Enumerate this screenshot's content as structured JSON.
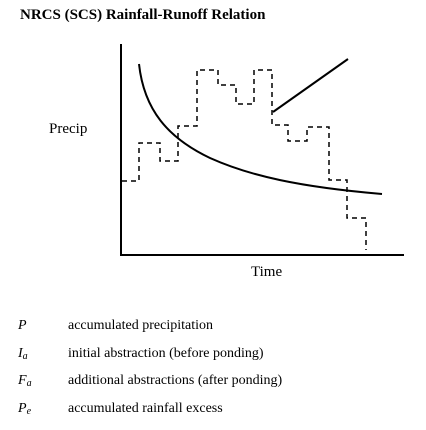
{
  "title": "NRCS (SCS) Rainfall-Runoff Relation",
  "y_label": "Precip",
  "x_label": "Time",
  "definitions": [
    {
      "symbol": "P",
      "subscript": "",
      "text": "accumulated precipitation"
    },
    {
      "symbol": "I",
      "subscript": "a",
      "text": "initial abstraction (before ponding)"
    },
    {
      "symbol": "F",
      "subscript": "a",
      "text": "additional abstractions (after ponding)"
    },
    {
      "symbol": "P",
      "subscript": "e",
      "text": "accumulated rainfall excess"
    }
  ]
}
